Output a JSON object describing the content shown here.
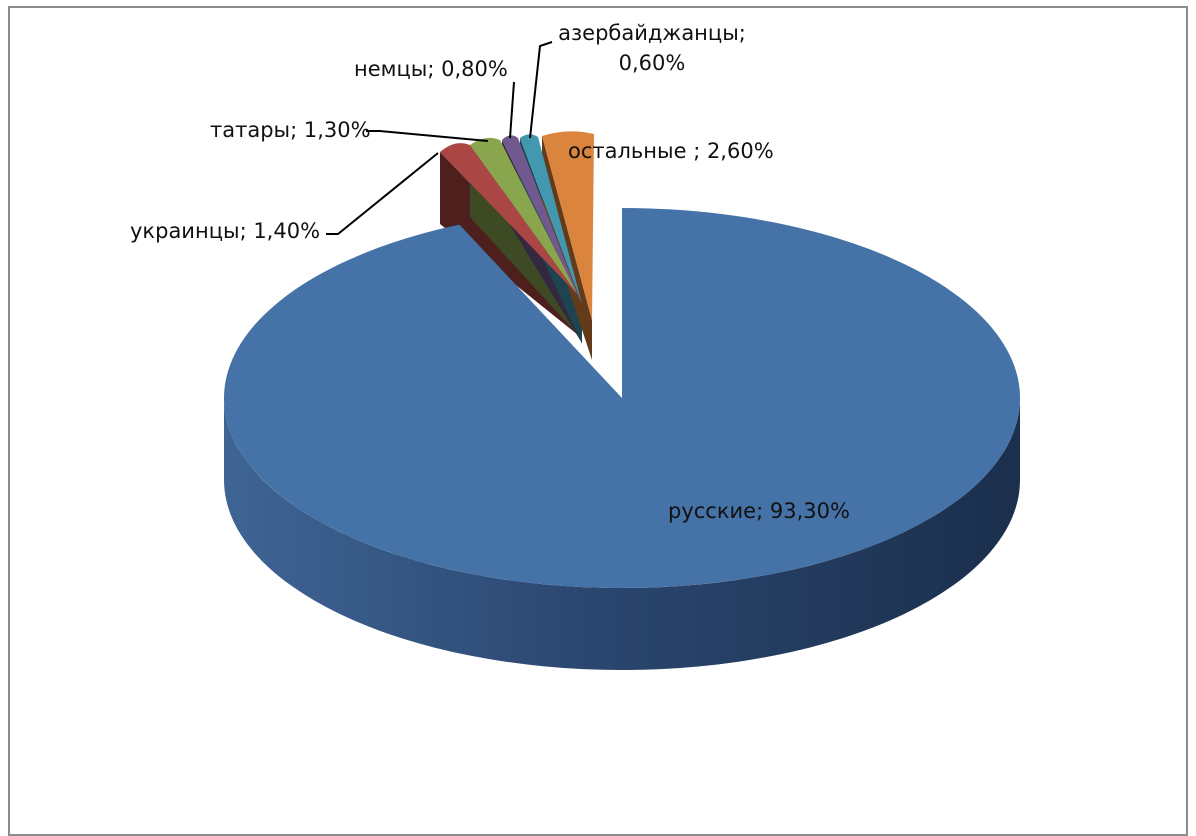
{
  "chart_data": {
    "type": "pie",
    "title": "",
    "legend": "none",
    "slices": [
      {
        "label": "русские",
        "value": 93.3,
        "value_text": "93,30%",
        "color": "#4572A7"
      },
      {
        "label": "украинцы",
        "value": 1.4,
        "value_text": "1,40%",
        "color": "#AA4643"
      },
      {
        "label": "татары",
        "value": 1.3,
        "value_text": "1,30%",
        "color": "#89A54E"
      },
      {
        "label": "немцы",
        "value": 0.8,
        "value_text": "0,80%",
        "color": "#71588F"
      },
      {
        "label": "азербайджанцы",
        "value": 0.6,
        "value_text": "0,60%",
        "color": "#4198AF"
      },
      {
        "label": "остальные ",
        "value": 2.6,
        "value_text": "2,60%",
        "color": "#DB843D"
      }
    ]
  }
}
